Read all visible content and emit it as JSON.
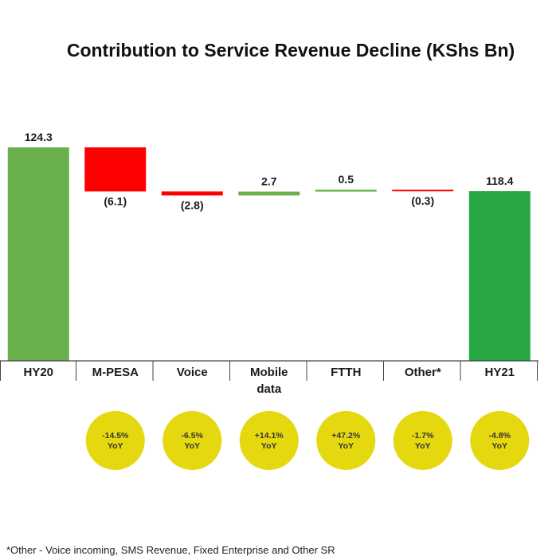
{
  "colors": {
    "positive": "#6ab04c",
    "negative": "#ff0000",
    "total_start": "#6ab04c",
    "total_end": "#28a745",
    "badge": "#e6d80f",
    "axis": "#444444"
  },
  "chart_data": {
    "type": "waterfall",
    "title": "Contribution to Service Revenue Decline (KShs Bn)",
    "categories": [
      "HY20",
      "M-PESA",
      "Voice",
      "Mobile data",
      "FTTH",
      "Other*",
      "HY21"
    ],
    "category_lines": [
      [
        "HY20"
      ],
      [
        "M-PESA"
      ],
      [
        "Voice"
      ],
      [
        "Mobile",
        "data"
      ],
      [
        "FTTH"
      ],
      [
        "Other*"
      ],
      [
        "HY21"
      ]
    ],
    "values": [
      124.3,
      -6.1,
      -2.8,
      2.7,
      0.5,
      -0.3,
      118.4
    ],
    "kinds": [
      "total",
      "delta",
      "delta",
      "delta",
      "delta",
      "delta",
      "total"
    ],
    "value_labels": [
      "124.3",
      "(6.1)",
      "(2.8)",
      "2.7",
      "0.5",
      "(0.3)",
      "118.4"
    ],
    "yoy": [
      null,
      "-14.5%",
      "-6.5%",
      "+14.1%",
      "+47.2%",
      "-1.7%",
      "-4.8%"
    ],
    "yoy_suffix": "YoY"
  },
  "footnote": "*Other - Voice incoming, SMS Revenue, Fixed Enterprise and Other SR"
}
